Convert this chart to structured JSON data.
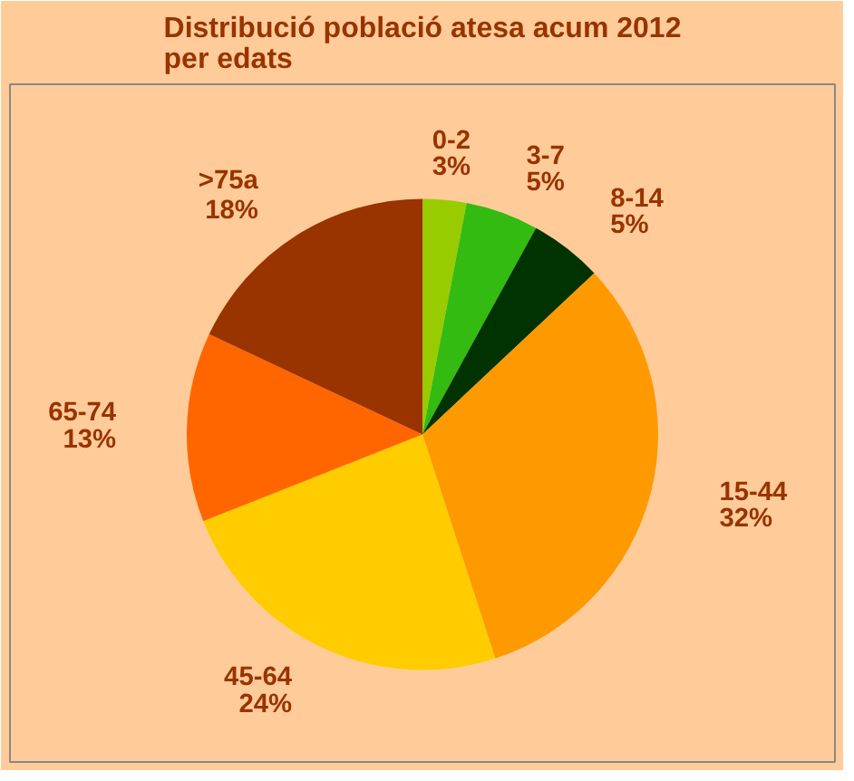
{
  "chart_data": {
    "type": "pie",
    "title": "Distribució població atesa acum 2012\nper edats",
    "categories": [
      "0-2",
      "3-7",
      "8-14",
      "15-44",
      "45-64",
      "65-74",
      ">75a"
    ],
    "values": [
      3,
      5,
      5,
      32,
      24,
      13,
      18
    ],
    "colors": [
      "#99cc00",
      "#33bb11",
      "#003300",
      "#ff9900",
      "#ffcc00",
      "#ff6600",
      "#993300"
    ],
    "value_labels": [
      "3%",
      "5%",
      "5%",
      "32%",
      "24%",
      "13%",
      "18%"
    ]
  }
}
